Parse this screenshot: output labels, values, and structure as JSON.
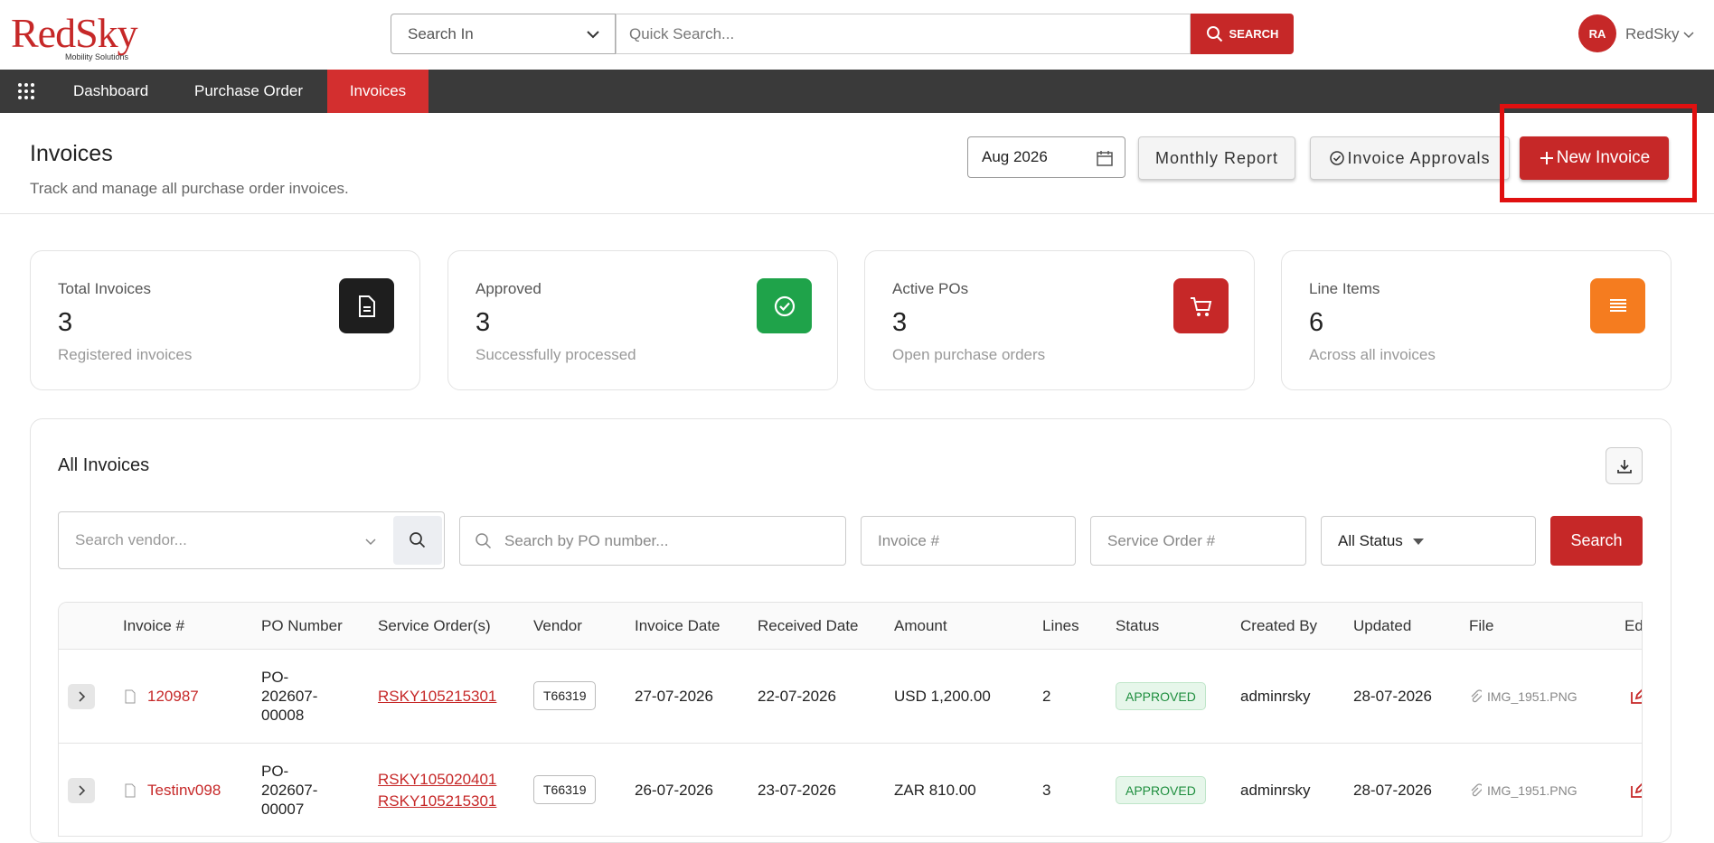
{
  "header": {
    "logo": "RedSky",
    "logo_sub": "Mobility Solutions",
    "search_in": "Search In",
    "quick_search": "Quick Search...",
    "search_button": "SEARCH",
    "avatar": "RA",
    "user": "RedSky"
  },
  "nav": [
    "Dashboard",
    "Purchase Order",
    "Invoices"
  ],
  "page": {
    "title": "Invoices",
    "subtitle": "Track and manage all purchase order invoices.",
    "month": "Aug 2026",
    "monthly_report": "Monthly Report",
    "invoice_approvals": "Invoice Approvals",
    "new_invoice": "New Invoice"
  },
  "cards": [
    {
      "label": "Total Invoices",
      "value": 3,
      "sub": "Registered invoices"
    },
    {
      "label": "Approved",
      "value": 3,
      "sub": "Successfully processed"
    },
    {
      "label": "Active POs",
      "value": 3,
      "sub": "Open purchase orders"
    },
    {
      "label": "Line Items",
      "value": 6,
      "sub": "Across all invoices"
    }
  ],
  "table": {
    "title": "All Invoices",
    "filters": {
      "vendor": "Search vendor...",
      "po": "Search by PO number...",
      "invoice": "Invoice #",
      "service_order": "Service Order #",
      "status": "All Status",
      "search": "Search"
    },
    "columns": [
      "Invoice #",
      "PO Number",
      "Service Order(s)",
      "Vendor",
      "Invoice Date",
      "Received Date",
      "Amount",
      "Lines",
      "Status",
      "Created By",
      "Updated",
      "File",
      "Edit"
    ],
    "rows": [
      {
        "invoice": "120987",
        "po": "PO-202607-00008",
        "service_orders": [
          "RSKY105215301"
        ],
        "vendor": "T66319",
        "invoice_date": "27-07-2026",
        "received_date": "22-07-2026",
        "amount": "USD 1,200.00",
        "lines": 2,
        "status": "APPROVED",
        "created_by": "adminrsky",
        "updated": "28-07-2026",
        "file": "IMG_1951.PNG"
      },
      {
        "invoice": "Testinv098",
        "po": "PO-202607-00007",
        "service_orders": [
          "RSKY105020401",
          "RSKY105215301"
        ],
        "vendor": "T66319",
        "invoice_date": "26-07-2026",
        "received_date": "23-07-2026",
        "amount": "ZAR 810.00",
        "lines": 3,
        "status": "APPROVED",
        "created_by": "adminrsky",
        "updated": "28-07-2026",
        "file": "IMG_1951.PNG"
      }
    ]
  }
}
